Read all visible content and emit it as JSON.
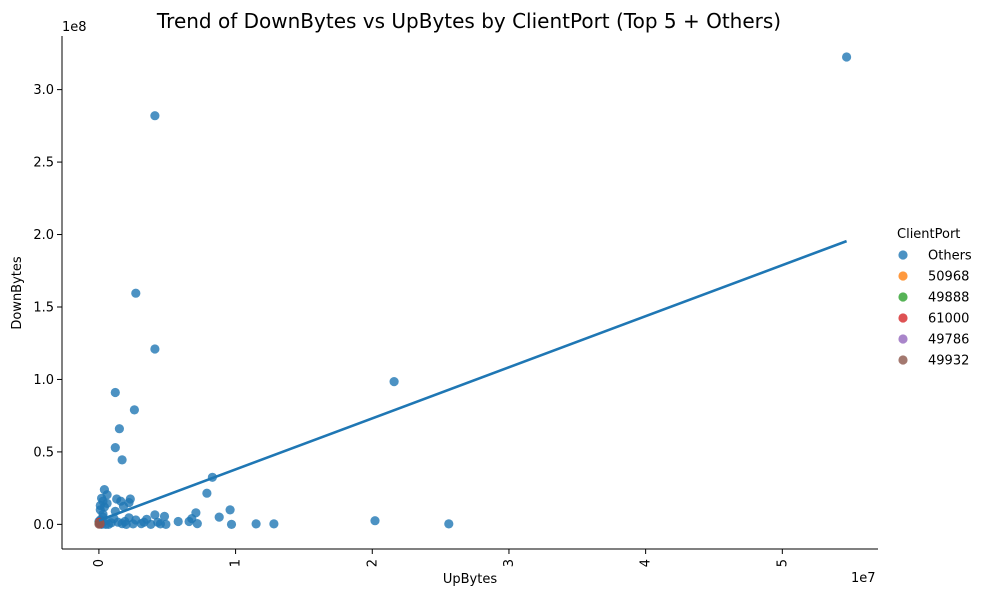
{
  "chart_data": {
    "type": "scatter",
    "title": "Trend of DownBytes vs UpBytes by ClientPort (Top 5 + Others)",
    "xlabel": "UpBytes",
    "ylabel": "DownBytes",
    "x_offset_label": "1e7",
    "y_offset_label": "1e8",
    "x_scale": 10000000,
    "y_scale": 100000000,
    "xlim": [
      -2700000,
      57000000
    ],
    "ylim": [
      -17000000,
      337000000
    ],
    "x_ticks": [
      0,
      10000000,
      20000000,
      30000000,
      40000000,
      50000000
    ],
    "x_tick_labels": [
      "0",
      "1",
      "2",
      "3",
      "4",
      "5"
    ],
    "y_ticks": [
      0,
      50000000,
      100000000,
      150000000,
      200000000,
      250000000,
      300000000
    ],
    "y_tick_labels": [
      "0.0",
      "0.5",
      "1.0",
      "1.5",
      "2.0",
      "2.5",
      "3.0"
    ],
    "grid": false,
    "legend": {
      "title": "ClientPort",
      "placement": "right",
      "entries": [
        "Others",
        "50968",
        "49888",
        "61000",
        "49786",
        "49932"
      ]
    },
    "series": [
      {
        "name": "Others",
        "color": "#1f77b4",
        "points": [
          [
            54700000,
            322500000
          ],
          [
            4100000,
            282000000
          ],
          [
            2700000,
            159500000
          ],
          [
            4100000,
            121000000
          ],
          [
            21600000,
            98500000
          ],
          [
            1200000,
            91000000
          ],
          [
            2600000,
            79000000
          ],
          [
            1500000,
            66000000
          ],
          [
            1200000,
            53000000
          ],
          [
            1700000,
            44500000
          ],
          [
            8300000,
            32500000
          ],
          [
            7900000,
            21500000
          ],
          [
            400000,
            24000000
          ],
          [
            600000,
            20500000
          ],
          [
            200000,
            18000000
          ],
          [
            1300000,
            17500000
          ],
          [
            2300000,
            17500000
          ],
          [
            1600000,
            16000000
          ],
          [
            300000,
            16000000
          ],
          [
            2200000,
            15000000
          ],
          [
            600000,
            14500000
          ],
          [
            100000,
            13000000
          ],
          [
            1800000,
            12500000
          ],
          [
            400000,
            12000000
          ],
          [
            100000,
            10000000
          ],
          [
            9600000,
            10000000
          ],
          [
            1200000,
            9000000
          ],
          [
            7100000,
            8000000
          ],
          [
            300000,
            7000000
          ],
          [
            4100000,
            6500000
          ],
          [
            4800000,
            5500000
          ],
          [
            8800000,
            5000000
          ],
          [
            300000,
            5000000
          ],
          [
            2200000,
            4500000
          ],
          [
            1100000,
            4000000
          ],
          [
            6800000,
            4000000
          ],
          [
            3500000,
            3500000
          ],
          [
            2700000,
            3000000
          ],
          [
            20200000,
            2500000
          ],
          [
            5800000,
            2000000
          ],
          [
            6600000,
            2000000
          ],
          [
            1900000,
            2000000
          ],
          [
            4300000,
            1500000
          ],
          [
            3300000,
            1500000
          ],
          [
            500000,
            2500000
          ],
          [
            900000,
            1000000
          ],
          [
            7200000,
            500000
          ],
          [
            11500000,
            300000
          ],
          [
            12800000,
            300000
          ],
          [
            25600000,
            300000
          ],
          [
            9700000,
            0
          ],
          [
            4900000,
            0
          ],
          [
            3100000,
            500000
          ],
          [
            1700000,
            500000
          ],
          [
            2500000,
            300000
          ],
          [
            4500000,
            300000
          ],
          [
            3800000,
            0
          ],
          [
            700000,
            0
          ],
          [
            200000,
            0
          ],
          [
            0,
            2000000
          ],
          [
            100000,
            3000000
          ],
          [
            500000,
            0
          ],
          [
            1400000,
            1500000
          ],
          [
            2000000,
            0
          ]
        ]
      },
      {
        "name": "50968",
        "color": "#ff7f0e",
        "points": [
          [
            30000,
            1200000
          ],
          [
            60000,
            400000
          ]
        ]
      },
      {
        "name": "49888",
        "color": "#2ca02c",
        "points": [
          [
            20000,
            800000
          ]
        ]
      },
      {
        "name": "61000",
        "color": "#d62728",
        "points": [
          [
            50000,
            1500000
          ],
          [
            80000,
            300000
          ]
        ]
      },
      {
        "name": "49786",
        "color": "#9467bd",
        "points": [
          [
            40000,
            600000
          ]
        ]
      },
      {
        "name": "49932",
        "color": "#8c564b",
        "points": [
          [
            10000,
            200000
          ],
          [
            70000,
            900000
          ]
        ]
      }
    ],
    "trend_lines": [
      {
        "name": "Others",
        "color": "#1f77b4",
        "x": [
          0,
          54700000
        ],
        "y": [
          2700000,
          195500000
        ]
      }
    ]
  }
}
